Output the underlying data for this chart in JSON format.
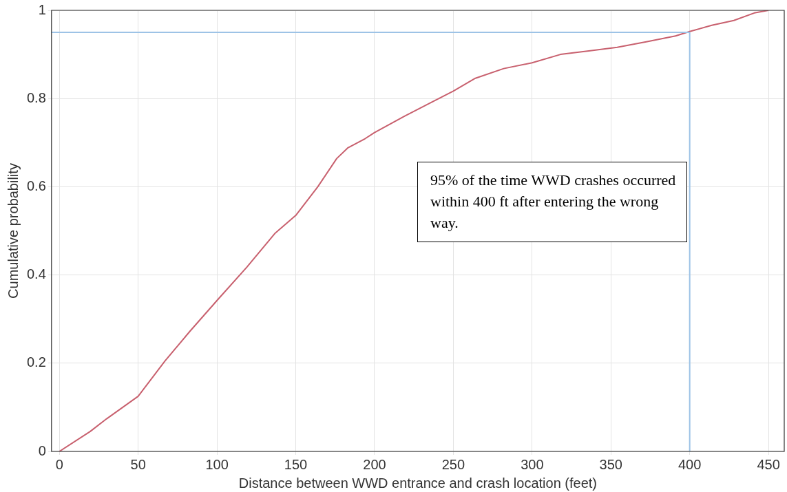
{
  "chart_data": {
    "type": "line",
    "xlabel": "Distance between WWD entrance and crash location (feet)",
    "ylabel": "Cumulative probability",
    "x": [
      0,
      19.5,
      30,
      50,
      67,
      83,
      100,
      119,
      137,
      150,
      164,
      176,
      183,
      194,
      200,
      219,
      237,
      250,
      264,
      282,
      300,
      318,
      336,
      354,
      373,
      391,
      400,
      414,
      428,
      441,
      450
    ],
    "series": [
      {
        "color": "#c8606e",
        "values": [
          0,
          0.045,
          0.074,
          0.125,
          0.205,
          0.273,
          0.342,
          0.418,
          0.495,
          0.535,
          0.6,
          0.664,
          0.688,
          0.709,
          0.723,
          0.76,
          0.793,
          0.817,
          0.846,
          0.868,
          0.881,
          0.9,
          0.908,
          0.916,
          0.929,
          0.942,
          0.952,
          0.966,
          0.977,
          0.994,
          1.0
        ]
      }
    ],
    "xlim": [
      -5,
      460
    ],
    "xticks": [
      0,
      50,
      100,
      150,
      200,
      250,
      300,
      350,
      400,
      450
    ],
    "ylim": [
      0,
      1
    ],
    "yticks": [
      0,
      0.2,
      0.4,
      0.6,
      0.8,
      1
    ],
    "grid": true,
    "legend": false,
    "marker": "none",
    "line_style": "solid",
    "ref_lines": [
      {
        "axis": "y",
        "value": 0.95,
        "color": "#9dc3e6"
      },
      {
        "axis": "x",
        "value": 400,
        "color": "#9dc3e6"
      }
    ],
    "annotations": [
      "95% of the time WWD crashes occurred within 400 ft after entering the wrong way."
    ]
  }
}
